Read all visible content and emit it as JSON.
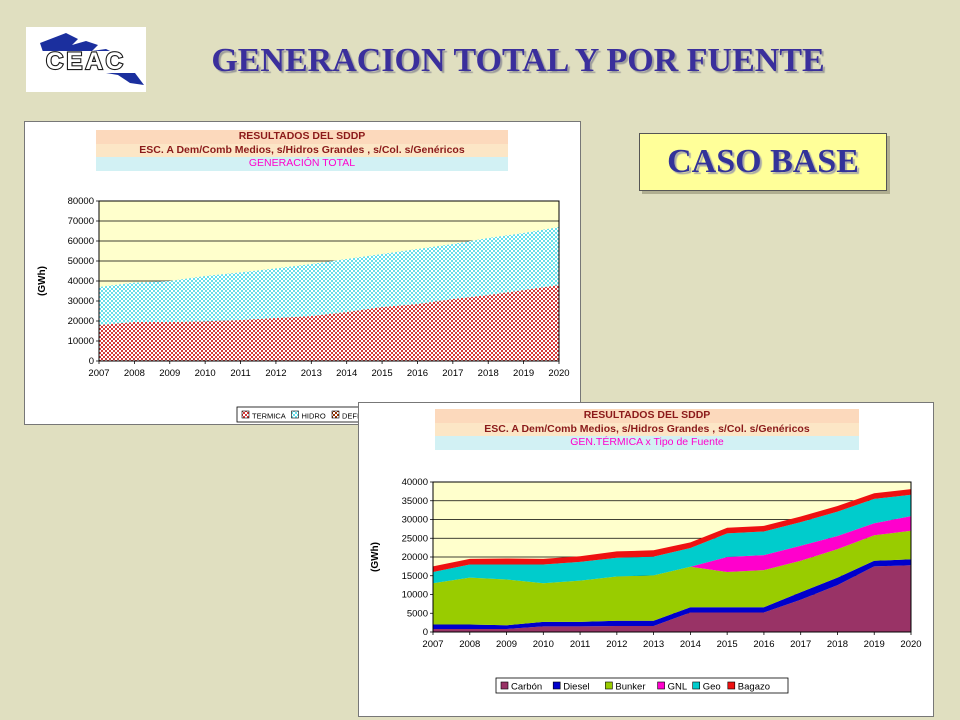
{
  "page": {
    "title": "GENERACION TOTAL Y POR FUENTE",
    "case_label": "CASO BASE",
    "logo_text": "CEAC"
  },
  "chart_data": [
    {
      "type": "area",
      "header": [
        "RESULTADOS DEL SDDP",
        "ESC. A Dem/Comb Medios, s/Hidros Grandes , s/Col. s/Genéricos",
        "GENERACIÓN TOTAL"
      ],
      "ylabel": "(GWh)",
      "ylim": [
        0,
        80000
      ],
      "yticks": [
        0,
        10000,
        20000,
        30000,
        40000,
        50000,
        60000,
        70000,
        80000
      ],
      "x": [
        2007,
        2008,
        2009,
        2010,
        2011,
        2012,
        2013,
        2014,
        2015,
        2016,
        2017,
        2018,
        2019,
        2020
      ],
      "stacked": true,
      "grid": true,
      "legend_position": "bottom",
      "series": [
        {
          "name": "TERMICA",
          "color": "#d63a3a",
          "values": [
            18000,
            19500,
            19500,
            19800,
            20500,
            21500,
            22500,
            24500,
            27000,
            28500,
            31000,
            33000,
            35500,
            38000
          ]
        },
        {
          "name": "HIDRO",
          "color": "#66e0ea",
          "values": [
            19000,
            19700,
            20500,
            22700,
            23800,
            24800,
            26000,
            26500,
            26500,
            27500,
            27500,
            28500,
            28500,
            29000
          ]
        },
        {
          "name": "DEFICIT",
          "color": "#993300",
          "values": [
            0,
            0,
            0,
            0,
            0,
            0,
            0,
            0,
            0,
            0,
            0,
            0,
            0,
            0
          ]
        }
      ]
    },
    {
      "type": "area",
      "header": [
        "RESULTADOS DEL SDDP",
        "ESC. A Dem/Comb Medios, s/Hidros Grandes , s/Col. s/Genéricos",
        "GEN.TÉRMICA x Tipo de Fuente"
      ],
      "ylabel": "(GWh)",
      "ylim": [
        0,
        40000
      ],
      "yticks": [
        0,
        5000,
        10000,
        15000,
        20000,
        25000,
        30000,
        35000,
        40000
      ],
      "x": [
        2007,
        2008,
        2009,
        2010,
        2011,
        2012,
        2013,
        2014,
        2015,
        2016,
        2017,
        2018,
        2019,
        2020
      ],
      "stacked": true,
      "grid": true,
      "legend_position": "bottom",
      "series": [
        {
          "name": "Carbón",
          "color": "#993366",
          "values": [
            800,
            800,
            800,
            1500,
            1500,
            1600,
            1600,
            5200,
            5200,
            5200,
            8600,
            12500,
            17500,
            17800
          ]
        },
        {
          "name": "Diesel",
          "color": "#0000cc",
          "values": [
            1200,
            1200,
            1000,
            1200,
            1200,
            1400,
            1400,
            1400,
            1400,
            1400,
            2000,
            2000,
            1500,
            1600
          ]
        },
        {
          "name": "Bunker",
          "color": "#99cc00",
          "values": [
            11000,
            12500,
            12200,
            10300,
            11000,
            11800,
            12100,
            10800,
            9400,
            9900,
            8400,
            7600,
            6800,
            7600
          ]
        },
        {
          "name": "GNL",
          "color": "#ff00cc",
          "values": [
            0,
            0,
            0,
            0,
            0,
            0,
            0,
            0,
            4000,
            4000,
            4000,
            3500,
            3200,
            3900
          ]
        },
        {
          "name": "Geo",
          "color": "#00cccc",
          "values": [
            3000,
            3500,
            4000,
            5000,
            5000,
            5000,
            5000,
            5000,
            6300,
            6300,
            6300,
            6500,
            6500,
            5700
          ]
        },
        {
          "name": "Bagazo",
          "color": "#ee1111",
          "values": [
            1500,
            1500,
            1600,
            1500,
            1500,
            1700,
            1700,
            1500,
            1500,
            1500,
            1500,
            1500,
            1500,
            1500
          ]
        }
      ]
    }
  ]
}
